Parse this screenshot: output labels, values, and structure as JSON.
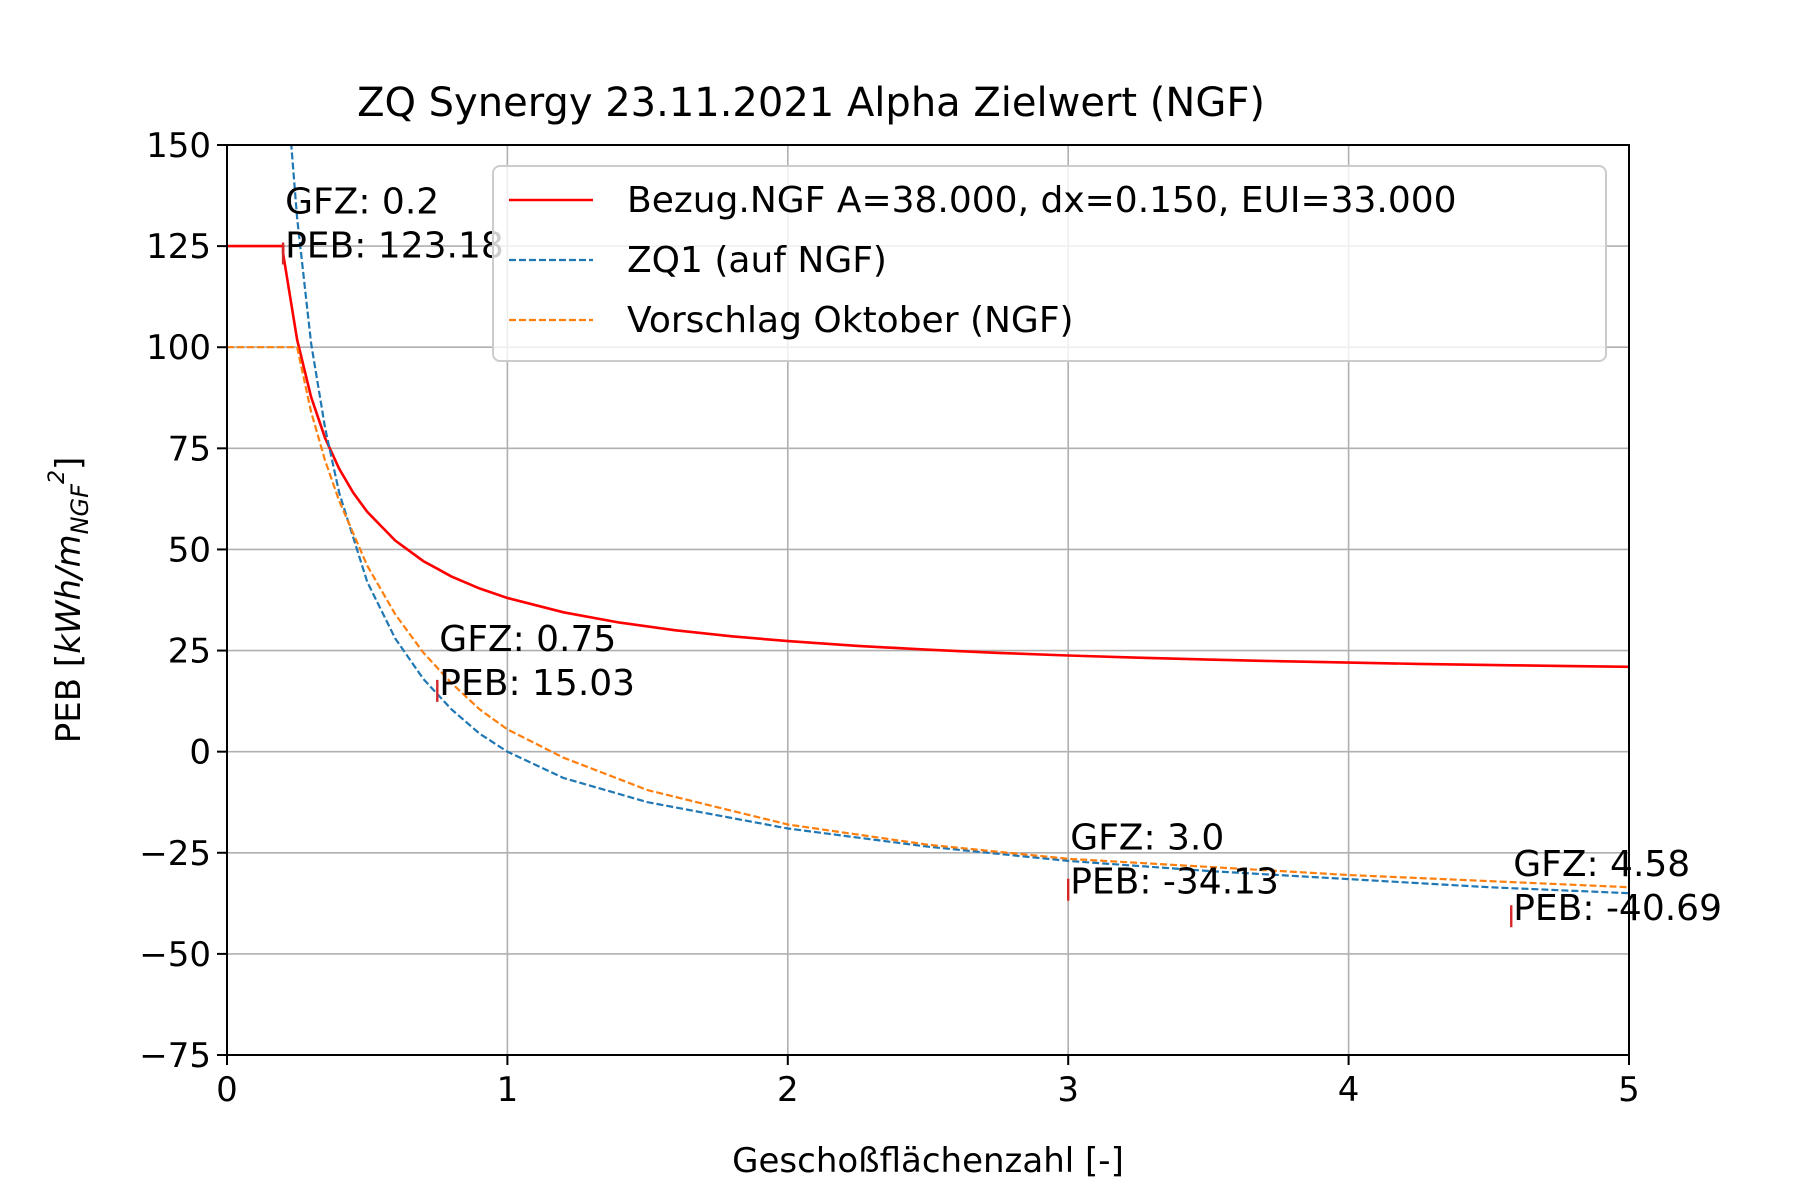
{
  "chart_data": {
    "type": "line",
    "title": "ZQ Synergy 23.11.2021 Alpha Zielwert (NGF)",
    "xlabel": "Geschoßflächenzahl [-]",
    "ylabel_main": "PEB [",
    "ylabel_kwh": "kWh/m",
    "ylabel_sub": "NGF",
    "ylabel_sup": "2",
    "ylabel_close": "]",
    "xlim": [
      0,
      5
    ],
    "ylim": [
      -75,
      150
    ],
    "xticks": [
      0,
      1,
      2,
      3,
      4,
      5
    ],
    "xtick_labels": [
      "0",
      "1",
      "2",
      "3",
      "4",
      "5"
    ],
    "yticks": [
      -75,
      -50,
      -25,
      0,
      25,
      50,
      75,
      100,
      125,
      150
    ],
    "ytick_labels": [
      "−75",
      "−50",
      "−25",
      "0",
      "25",
      "50",
      "75",
      "100",
      "125",
      "150"
    ],
    "grid": true,
    "legend_position": "top-right",
    "series": [
      {
        "name": "Bezug.NGF A=38.000, dx=0.150, EUI=33.000",
        "color": "#ff0000",
        "style": "solid",
        "x": [
          0,
          0.2,
          0.2,
          0.25,
          0.3,
          0.35,
          0.4,
          0.45,
          0.5,
          0.6,
          0.7,
          0.75,
          0.8,
          0.9,
          1.0,
          1.2,
          1.4,
          1.6,
          1.8,
          2.0,
          2.25,
          2.5,
          2.75,
          3.0,
          3.25,
          3.5,
          3.75,
          4.0,
          4.25,
          4.58,
          4.75,
          5.0
        ],
        "y": [
          125,
          125,
          123.18,
          101.88,
          87.68,
          77.54,
          69.94,
          64.02,
          59.3,
          52.2,
          47.13,
          45.23,
          43.33,
          40.37,
          38.0,
          34.45,
          31.91,
          30.01,
          28.53,
          27.35,
          26.16,
          25.21,
          24.43,
          23.78,
          23.24,
          22.77,
          22.37,
          22.02,
          21.71,
          21.36,
          21.2,
          20.99
        ]
      },
      {
        "name": "ZQ1 (auf NGF)",
        "color": "#1f77b4",
        "style": "dashed",
        "x": [
          0.22,
          0.25,
          0.3,
          0.35,
          0.4,
          0.5,
          0.6,
          0.7,
          0.8,
          0.9,
          1.0,
          1.2,
          1.5,
          2.0,
          2.5,
          3.0,
          3.5,
          4.0,
          4.5,
          5.0
        ],
        "y": [
          158,
          132,
          101,
          80,
          64,
          42,
          28,
          18,
          10.5,
          4.5,
          0,
          -6.5,
          -12.5,
          -19,
          -23.5,
          -27,
          -29.5,
          -31.5,
          -33.5,
          -35
        ]
      },
      {
        "name": "Vorschlag Oktober (NGF)",
        "color": "#ff7f0e",
        "style": "dashed",
        "x": [
          0,
          0.25,
          0.3,
          0.35,
          0.4,
          0.5,
          0.6,
          0.7,
          0.8,
          0.9,
          1.0,
          1.2,
          1.5,
          2.0,
          2.5,
          3.0,
          3.5,
          4.0,
          4.5,
          5.0
        ],
        "y": [
          100,
          100,
          84,
          72,
          62,
          46,
          34,
          24.5,
          17,
          10.5,
          5.5,
          -1.5,
          -9.5,
          -18,
          -23,
          -26.5,
          -28.5,
          -30.5,
          -32,
          -33.5
        ]
      }
    ],
    "markers": [
      {
        "x": 0.2,
        "y": 123.18,
        "color": "#d62728"
      },
      {
        "x": 0.75,
        "y": 15.03,
        "color": "#d62728"
      },
      {
        "x": 3.0,
        "y": -34.13,
        "color": "#d62728"
      },
      {
        "x": 4.58,
        "y": -40.69,
        "color": "#d62728"
      }
    ],
    "annotations": [
      {
        "x": 0.2,
        "y": 123.18,
        "line1": "GFZ: 0.2",
        "line2": "PEB: 123.18"
      },
      {
        "x": 0.75,
        "y": 15.03,
        "line1": "GFZ: 0.75",
        "line2": "PEB: 15.03"
      },
      {
        "x": 3.0,
        "y": -34.13,
        "line1": "GFZ: 3.0",
        "line2": "PEB: -34.13"
      },
      {
        "x": 4.58,
        "y": -40.69,
        "line1": "GFZ: 4.58",
        "line2": "PEB: -40.69"
      }
    ]
  }
}
